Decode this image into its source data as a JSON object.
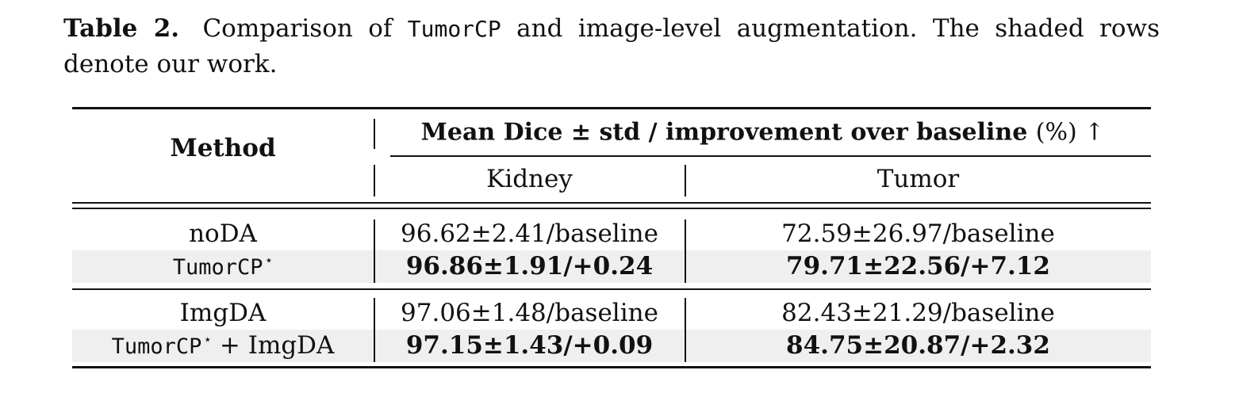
{
  "caption": {
    "label": "Table 2.",
    "text_before": "Comparison of",
    "method_name": "TumorCP",
    "text_after": "and image-level augmentation. The shaded rows denote our work."
  },
  "table": {
    "method_header": "Method",
    "metric_header": "Mean Dice ± std / improvement over baseline",
    "metric_unit": "(%) ↑",
    "columns": [
      "Kidney",
      "Tumor"
    ],
    "groups": [
      {
        "rows": [
          {
            "method": "noDA",
            "method_style": "serif",
            "sup": "",
            "suffix": "",
            "kidney": "96.62±2.41/baseline",
            "tumor": "72.59±26.97/baseline",
            "shaded": false,
            "bold": false
          },
          {
            "method": "TumorCP",
            "method_style": "mono",
            "sup": "⋆",
            "suffix": "",
            "kidney": "96.86±1.91/+0.24",
            "tumor": "79.71±22.56/+7.12",
            "shaded": true,
            "bold": true
          }
        ]
      },
      {
        "rows": [
          {
            "method": "ImgDA",
            "method_style": "serif",
            "sup": "",
            "suffix": "",
            "kidney": "97.06±1.48/baseline",
            "tumor": "82.43±21.29/baseline",
            "shaded": false,
            "bold": false
          },
          {
            "method": "TumorCP",
            "method_style": "mono",
            "sup": "⋆",
            "suffix": " + ImgDA",
            "kidney": "97.15±1.43/+0.09",
            "tumor": "84.75±20.87/+2.32",
            "shaded": true,
            "bold": true
          }
        ]
      }
    ]
  }
}
